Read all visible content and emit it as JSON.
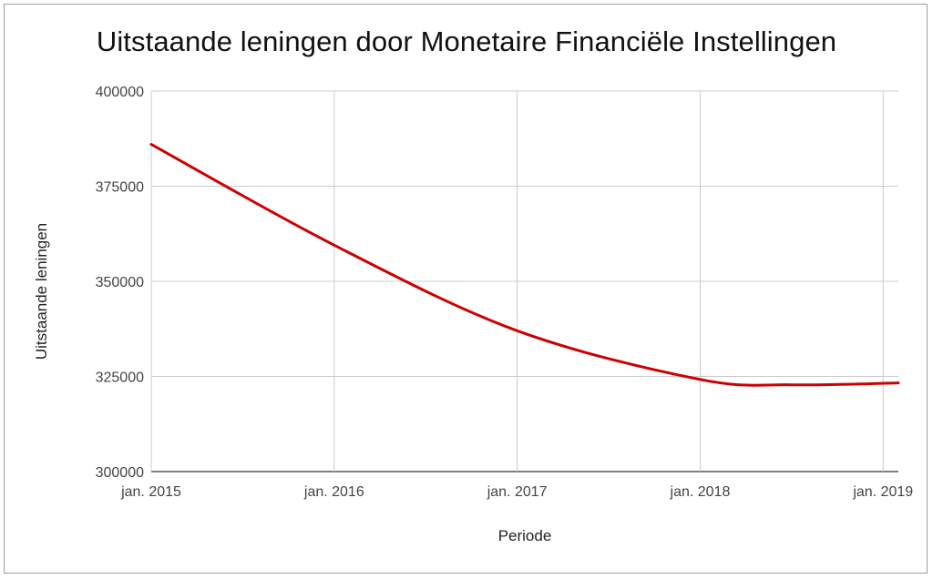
{
  "chart_data": {
    "type": "line",
    "title": "Uitstaande leningen door Monetaire Financiële Instellingen",
    "xlabel": "Periode",
    "ylabel": "Uitstaande leningen",
    "xlim": [
      "2015-01",
      "2019-02"
    ],
    "ylim": [
      300000,
      400000
    ],
    "y_ticks": [
      300000,
      325000,
      350000,
      375000,
      400000
    ],
    "y_tick_labels": [
      "300000",
      "325000",
      "350000",
      "375000",
      "400000"
    ],
    "x_ticks": [
      "2015-01",
      "2016-01",
      "2017-01",
      "2018-01",
      "2019-01"
    ],
    "x_tick_labels": [
      "jan. 2015",
      "jan. 2016",
      "jan. 2017",
      "jan. 2018",
      "jan. 2019"
    ],
    "grid": true,
    "legend": "none",
    "line_color": "#cc0000",
    "series": [
      {
        "x": [
          "2015-01",
          "2016-01",
          "2017-01",
          "2018-01",
          "2018-07",
          "2019-02"
        ],
        "values": [
          386000,
          359500,
          337000,
          324200,
          322800,
          323300
        ]
      }
    ]
  }
}
